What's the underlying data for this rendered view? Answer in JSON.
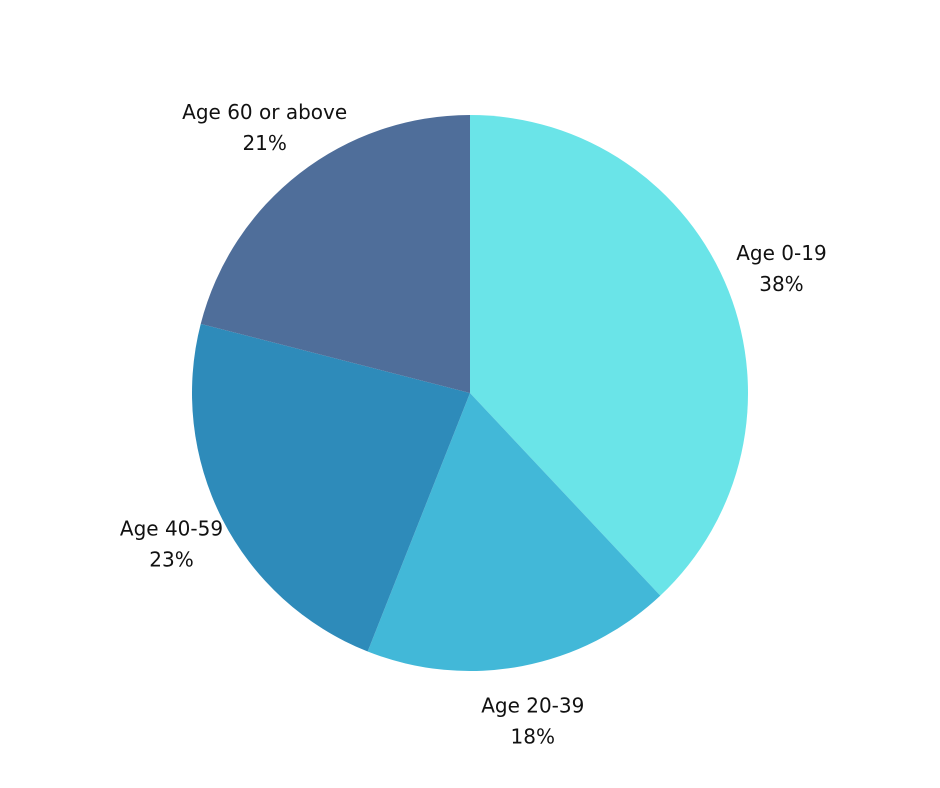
{
  "chart_data": {
    "type": "pie",
    "categories": [
      "Age 0-19",
      "Age 20-39",
      "Age 40-59",
      "Age 60 or above"
    ],
    "values": [
      38,
      18,
      23,
      21
    ],
    "value_labels": [
      "38%",
      "18%",
      "23%",
      "21%"
    ],
    "colors": [
      "#6ae4e8",
      "#42b8d8",
      "#2e8bba",
      "#4f6e9a"
    ]
  }
}
